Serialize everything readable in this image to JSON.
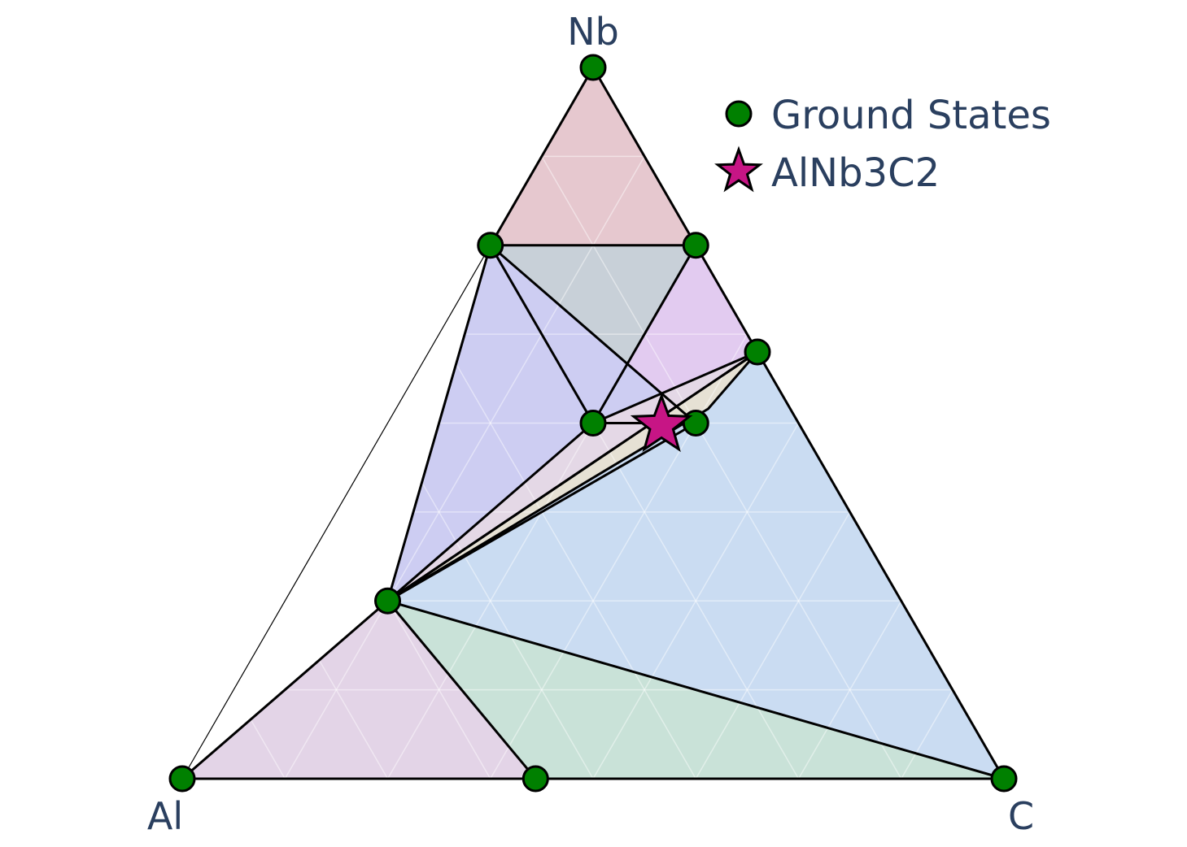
{
  "chart_data": {
    "type": "scatter",
    "subtype": "ternary-phase-diagram",
    "vertices": {
      "top": "Nb",
      "left": "Al",
      "right": "C"
    },
    "grid": true,
    "grid_step": 0.125,
    "legend_position": "top-right",
    "legend": [
      {
        "name": "Ground States",
        "marker": "circle",
        "color": "#008000"
      },
      {
        "name": "AlNb3C2",
        "marker": "star",
        "color": "#c71585"
      }
    ],
    "series": [
      {
        "name": "Ground States",
        "composition_order": [
          "Al",
          "Nb",
          "C"
        ],
        "points": [
          {
            "Al": 0,
            "Nb": 1,
            "C": 0
          },
          {
            "Al": 1,
            "Nb": 0,
            "C": 0
          },
          {
            "Al": 0,
            "Nb": 0,
            "C": 1
          },
          {
            "Al": 0.25,
            "Nb": 0.75,
            "C": 0
          },
          {
            "Al": 0,
            "Nb": 0.75,
            "C": 0.25
          },
          {
            "Al": 0,
            "Nb": 0.6,
            "C": 0.4
          },
          {
            "Al": 0.125,
            "Nb": 0.5,
            "C": 0.375
          },
          {
            "Al": 0.25,
            "Nb": 0.5,
            "C": 0.25
          },
          {
            "Al": 0.625,
            "Nb": 0.25,
            "C": 0.125
          },
          {
            "Al": 0.57,
            "Nb": 0,
            "C": 0.43
          }
        ]
      },
      {
        "name": "AlNb3C2",
        "points": [
          {
            "Al": 0.1667,
            "Nb": 0.5,
            "C": 0.3333
          }
        ]
      }
    ],
    "facets": [
      {
        "vertices": [
          0,
          3,
          4
        ],
        "color": "#e6c8cf"
      },
      {
        "vertices": [
          3,
          4,
          7
        ],
        "color": "#c8d0d8"
      },
      {
        "vertices": [
          3,
          7,
          6
        ],
        "color": "#e8c8ec"
      },
      {
        "vertices": [
          4,
          7,
          5
        ],
        "color": "#e2cbf0"
      },
      {
        "vertices": [
          3,
          6,
          8
        ],
        "color": "#cdcdf2"
      },
      {
        "vertices": [
          6,
          7,
          8
        ],
        "color": "#c4e4e8"
      },
      {
        "vertices": [
          7,
          5,
          8
        ],
        "color": "#e4d8e6"
      },
      {
        "vertices": [
          5,
          8,
          2
        ],
        "color": "#cadcf2"
      },
      {
        "vertices": [
          8,
          9,
          2
        ],
        "color": "#c9e2d8"
      },
      {
        "vertices": [
          1,
          8,
          9
        ],
        "color": "#e3d4e7"
      }
    ],
    "sliver_facet": {
      "points": [
        [
          0.1,
          0.52,
          0.38
        ],
        [
          0.0,
          0.6,
          0.4
        ],
        [
          0.625,
          0.25,
          0.125
        ]
      ],
      "color": "#e6e1d4"
    }
  }
}
